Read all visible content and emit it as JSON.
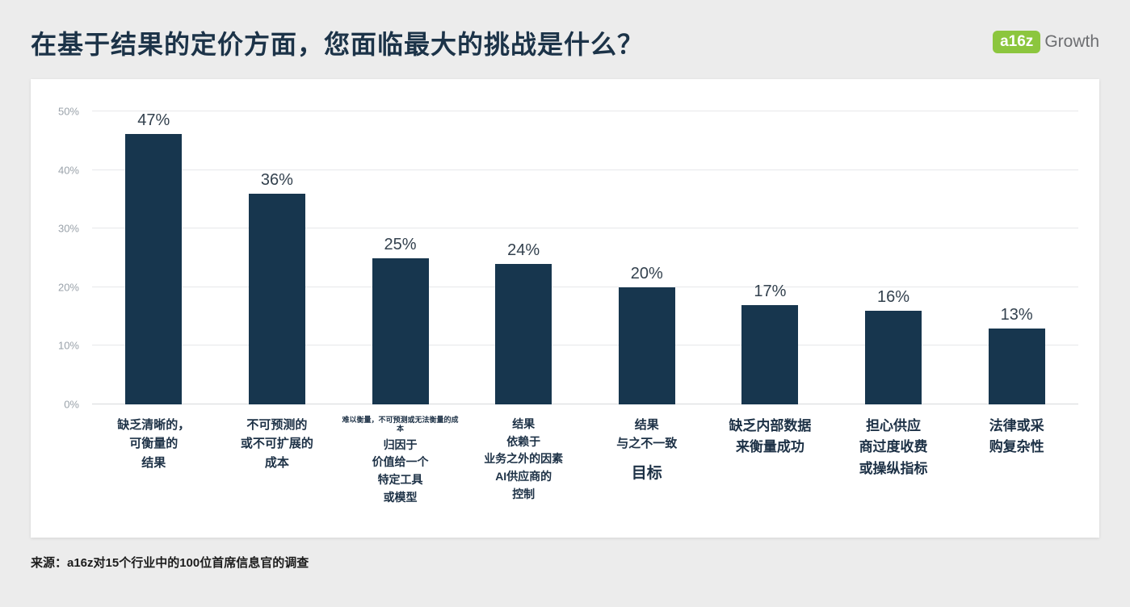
{
  "header": {
    "title": "在基于结果的定价方面，您面临最大的挑战是什么？",
    "logo": {
      "badge": "a16z",
      "suffix": "Growth",
      "badge_color": "#8cc63e"
    }
  },
  "chart_data": {
    "type": "bar",
    "title": "在基于结果的定价方面，您面临最大的挑战是什么？",
    "values": [
      47,
      36,
      25,
      24,
      20,
      17,
      16,
      13
    ],
    "value_labels": [
      "47%",
      "36%",
      "25%",
      "24%",
      "20%",
      "17%",
      "16%",
      "13%"
    ],
    "categories": [
      {
        "lines": [
          "缺乏清晰的，",
          "可衡量的",
          "结果"
        ],
        "size": 15
      },
      {
        "lines": [
          "不可预测的",
          "或不可扩展的",
          "成本"
        ],
        "size": 15
      },
      {
        "note": "难以衡量，不可预测或无法衡量的成本",
        "lines": [
          "归因于",
          "价值给一个",
          "特定工具",
          "或模型"
        ],
        "size": 14
      },
      {
        "lines": [
          "结果",
          "依赖于",
          "业务之外的因素",
          "AI供应商的",
          "控制"
        ],
        "size": 14
      },
      {
        "lines": [
          "结果",
          "与之不一致"
        ],
        "emphasis": "目标",
        "size": 15
      },
      {
        "lines": [
          "缺乏内部数据",
          "来衡量成功"
        ],
        "size": 17
      },
      {
        "lines": [
          "担心供应",
          "商过度收费",
          "或操纵指标"
        ],
        "size": 17
      },
      {
        "lines": [
          "法律或采",
          "购复杂性"
        ],
        "size": 17
      }
    ],
    "ylim": [
      0,
      50
    ],
    "yticks": [
      "0%",
      "10%",
      "20%",
      "30%",
      "40%",
      "50%"
    ],
    "bar_color": "#17364e",
    "grid": true,
    "legend": "none"
  },
  "footer": {
    "source": "来源：a16z对15个行业中的100位首席信息官的调查"
  }
}
